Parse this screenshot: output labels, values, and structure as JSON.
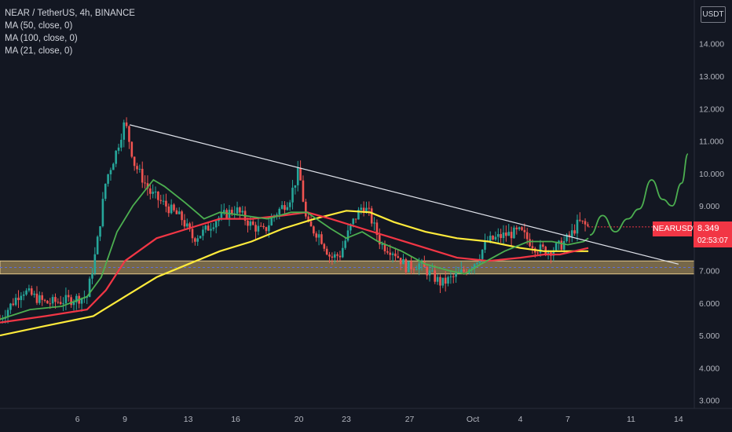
{
  "legend": {
    "symbol": "NEAR / TetherUS, 4h, BINANCE",
    "ma1": "MA (50, close, 0)",
    "ma2": "MA (100, close, 0)",
    "ma3": "MA (21, close, 0)"
  },
  "currency_label": "USDT",
  "price_tag": {
    "symbol": "NEARUSDT",
    "price": "8.349",
    "countdown": "02:53:07",
    "color": "#f23645"
  },
  "chart_data": {
    "type": "candlestick",
    "y_axis": {
      "ticks": [
        3,
        4,
        5,
        6,
        7,
        8,
        9,
        10,
        11,
        12,
        13,
        14
      ],
      "tick_labels": [
        "3.000",
        "4.000",
        "5.000",
        "6.000",
        "7.000",
        "8.000",
        "9.000",
        "10.000",
        "11.000",
        "12.000",
        "13.000",
        "14.000"
      ],
      "range": [
        2.75,
        15.35
      ]
    },
    "x_axis": {
      "tick_labels": [
        "6",
        "9",
        "13",
        "16",
        "20",
        "23",
        "27",
        "Oct",
        "4",
        "7",
        "11",
        "14"
      ],
      "tick_days": [
        6,
        9,
        13,
        16,
        20,
        23,
        27,
        31,
        34,
        37,
        41,
        44
      ],
      "range_days": [
        1.1,
        45.0
      ]
    },
    "colors": {
      "up": "#26a69a",
      "down": "#ef5350",
      "ma50": "#f23645",
      "ma100": "#ffeb3b",
      "ma21": "#4caf50",
      "trendline": "#e0e3eb",
      "support_zone": "#c8a96a",
      "projection": "#4caf50"
    },
    "price_path": [
      [
        1.1,
        5.5
      ],
      [
        2.5,
        6.4
      ],
      [
        4.0,
        6.0
      ],
      [
        5.5,
        6.1
      ],
      [
        6.6,
        6.2
      ],
      [
        7.2,
        7.7
      ],
      [
        7.8,
        9.8
      ],
      [
        8.4,
        10.6
      ],
      [
        9.0,
        11.6
      ],
      [
        9.6,
        10.3
      ],
      [
        10.6,
        9.4
      ],
      [
        11.6,
        9.0
      ],
      [
        12.6,
        8.6
      ],
      [
        13.3,
        8.0
      ],
      [
        14.0,
        8.2
      ],
      [
        14.8,
        8.6
      ],
      [
        16.0,
        8.9
      ],
      [
        17.0,
        8.4
      ],
      [
        17.8,
        8.2
      ],
      [
        18.4,
        8.7
      ],
      [
        19.4,
        9.2
      ],
      [
        20.0,
        10.1
      ],
      [
        20.5,
        8.4
      ],
      [
        21.3,
        8.1
      ],
      [
        22.0,
        7.4
      ],
      [
        22.6,
        7.5
      ],
      [
        23.3,
        8.4
      ],
      [
        24.0,
        9.0
      ],
      [
        24.4,
        8.8
      ],
      [
        25.2,
        7.8
      ],
      [
        26.0,
        7.6
      ],
      [
        26.8,
        7.1
      ],
      [
        27.6,
        7.2
      ],
      [
        28.3,
        6.9
      ],
      [
        29.0,
        6.6
      ],
      [
        29.8,
        6.8
      ],
      [
        30.5,
        7.0
      ],
      [
        31.2,
        7.3
      ],
      [
        31.9,
        7.9
      ],
      [
        33.0,
        8.1
      ],
      [
        34.0,
        8.2
      ],
      [
        35.0,
        7.7
      ],
      [
        35.8,
        7.6
      ],
      [
        36.6,
        7.8
      ],
      [
        37.2,
        8.1
      ],
      [
        37.7,
        8.5
      ],
      [
        38.3,
        8.349
      ]
    ],
    "ma21": [
      [
        1.1,
        5.5
      ],
      [
        3.0,
        5.8
      ],
      [
        5.0,
        5.9
      ],
      [
        6.6,
        6.2
      ],
      [
        7.5,
        6.8
      ],
      [
        8.5,
        8.2
      ],
      [
        9.5,
        9.0
      ],
      [
        10.8,
        9.8
      ],
      [
        11.5,
        9.6
      ],
      [
        12.8,
        9.1
      ],
      [
        14.0,
        8.6
      ],
      [
        15.0,
        8.8
      ],
      [
        16.5,
        8.7
      ],
      [
        18.0,
        8.6
      ],
      [
        19.5,
        8.8
      ],
      [
        20.5,
        8.8
      ],
      [
        22.0,
        8.3
      ],
      [
        23.0,
        8.0
      ],
      [
        24.0,
        8.2
      ],
      [
        25.0,
        7.9
      ],
      [
        26.5,
        7.6
      ],
      [
        28.0,
        7.2
      ],
      [
        29.5,
        7.0
      ],
      [
        30.5,
        6.9
      ],
      [
        31.5,
        7.2
      ],
      [
        33.0,
        7.6
      ],
      [
        34.5,
        7.9
      ],
      [
        36.0,
        7.9
      ],
      [
        37.0,
        7.8
      ],
      [
        38.0,
        7.9
      ],
      [
        38.3,
        8.0
      ]
    ],
    "ma50": [
      [
        1.1,
        5.4
      ],
      [
        4.0,
        5.6
      ],
      [
        6.6,
        5.8
      ],
      [
        7.8,
        6.4
      ],
      [
        9.0,
        7.3
      ],
      [
        11.0,
        8.0
      ],
      [
        13.0,
        8.3
      ],
      [
        15.0,
        8.6
      ],
      [
        17.0,
        8.6
      ],
      [
        19.0,
        8.7
      ],
      [
        20.5,
        8.8
      ],
      [
        22.0,
        8.6
      ],
      [
        24.0,
        8.3
      ],
      [
        26.0,
        8.0
      ],
      [
        28.0,
        7.7
      ],
      [
        30.0,
        7.4
      ],
      [
        32.0,
        7.3
      ],
      [
        34.0,
        7.4
      ],
      [
        35.5,
        7.5
      ],
      [
        36.5,
        7.5
      ],
      [
        38.3,
        7.7
      ]
    ],
    "ma100": [
      [
        1.1,
        5.0
      ],
      [
        4.0,
        5.3
      ],
      [
        7.0,
        5.6
      ],
      [
        9.0,
        6.2
      ],
      [
        11.0,
        6.8
      ],
      [
        13.0,
        7.2
      ],
      [
        15.0,
        7.6
      ],
      [
        17.0,
        7.9
      ],
      [
        19.0,
        8.3
      ],
      [
        21.0,
        8.6
      ],
      [
        23.0,
        8.85
      ],
      [
        24.5,
        8.8
      ],
      [
        26.0,
        8.5
      ],
      [
        28.0,
        8.2
      ],
      [
        30.0,
        8.0
      ],
      [
        32.0,
        7.9
      ],
      [
        34.0,
        7.7
      ],
      [
        35.5,
        7.6
      ],
      [
        36.5,
        7.6
      ],
      [
        38.3,
        7.6
      ]
    ],
    "trendline": [
      [
        9.3,
        11.5
      ],
      [
        44.0,
        7.2
      ]
    ],
    "support_zone": [
      6.9,
      7.3
    ],
    "support_mid": 7.1,
    "projection": [
      [
        38.4,
        8.1
      ],
      [
        39.2,
        8.7
      ],
      [
        40.0,
        8.2
      ],
      [
        40.8,
        8.6
      ],
      [
        41.5,
        8.9
      ],
      [
        42.3,
        9.8
      ],
      [
        43.0,
        9.2
      ],
      [
        43.6,
        9.0
      ],
      [
        44.2,
        9.7
      ],
      [
        44.6,
        10.6
      ]
    ]
  }
}
